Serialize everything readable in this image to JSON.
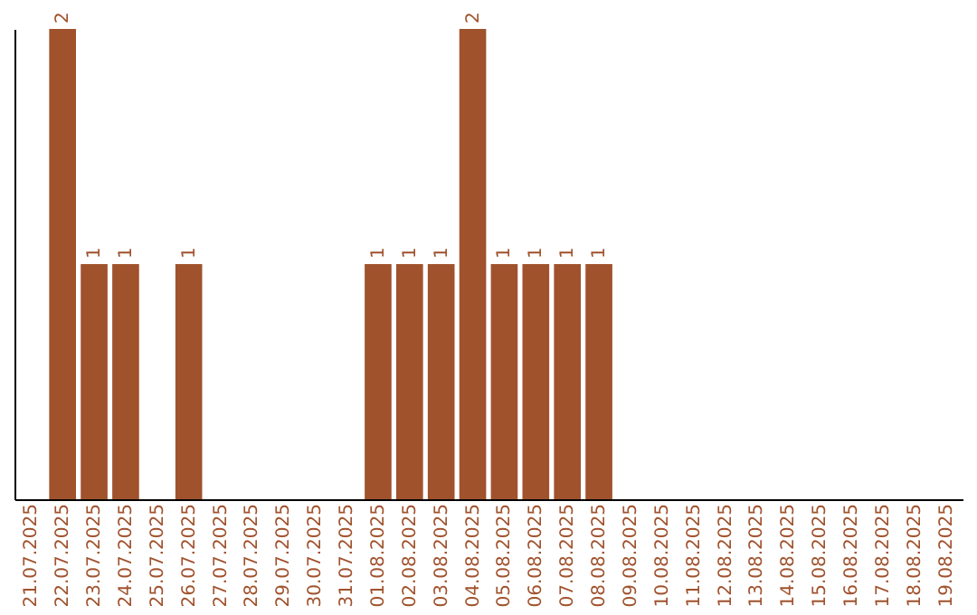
{
  "chart_data": {
    "type": "bar",
    "categories": [
      "21.07.2025",
      "22.07.2025",
      "23.07.2025",
      "24.07.2025",
      "25.07.2025",
      "26.07.2025",
      "27.07.2025",
      "28.07.2025",
      "29.07.2025",
      "30.07.2025",
      "31.07.2025",
      "01.08.2025",
      "02.08.2025",
      "03.08.2025",
      "04.08.2025",
      "05.08.2025",
      "06.08.2025",
      "07.08.2025",
      "08.08.2025",
      "09.08.2025",
      "10.08.2025",
      "11.08.2025",
      "12.08.2025",
      "13.08.2025",
      "14.08.2025",
      "15.08.2025",
      "16.08.2025",
      "17.08.2025",
      "18.08.2025",
      "19.08.2025"
    ],
    "values": [
      0,
      2,
      1,
      1,
      0,
      1,
      0,
      0,
      0,
      0,
      0,
      1,
      1,
      1,
      2,
      1,
      1,
      1,
      1,
      0,
      0,
      0,
      0,
      0,
      0,
      0,
      0,
      0,
      0,
      0
    ],
    "value_labels": [
      null,
      "2",
      "1",
      "1",
      null,
      "1",
      null,
      null,
      null,
      null,
      null,
      "1",
      "1",
      "1",
      "2",
      "1",
      "1",
      "1",
      "1",
      null,
      null,
      null,
      null,
      null,
      null,
      null,
      null,
      null,
      null,
      null
    ],
    "color": "#a0522d",
    "tick_labels": "x",
    "grid": false
  }
}
